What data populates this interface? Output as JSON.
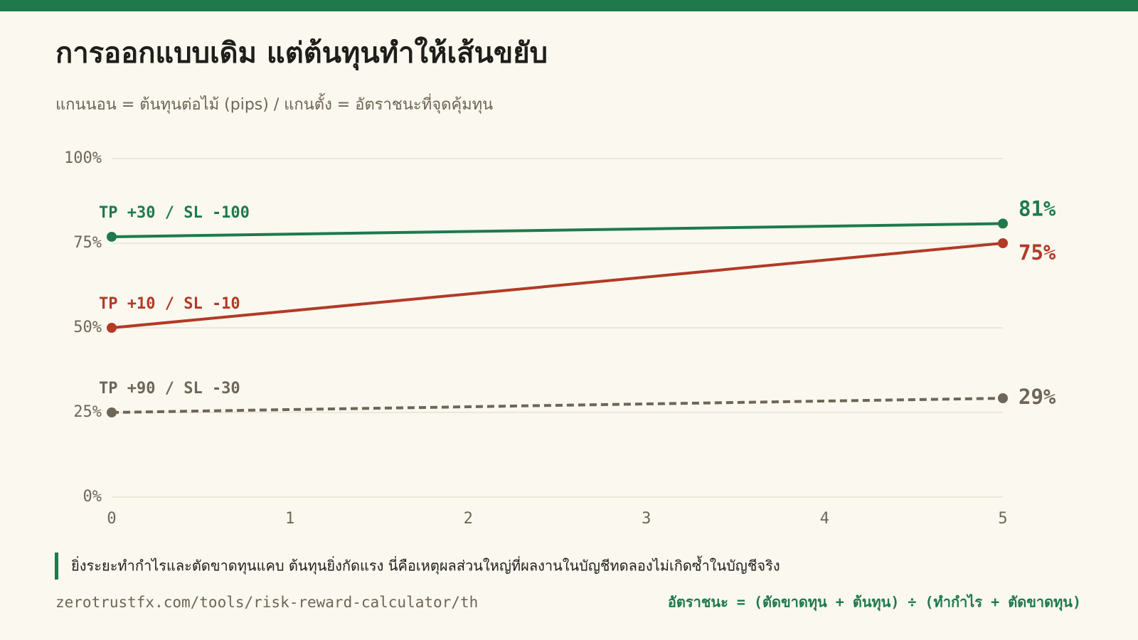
{
  "chart_data": {
    "type": "line",
    "title": "การออกแบบเดิม แต่ต้นทุนทำให้เส้นขยับ",
    "subtitle": "แกนนอน = ต้นทุนต่อไม้ (pips) / แกนตั้ง = อัตราชนะที่จุดคุ้มทุน",
    "x": [
      0,
      5
    ],
    "series": [
      {
        "name": "TP +30 / SL -100",
        "color": "#1e7a4c",
        "values": [
          76.9,
          80.8
        ],
        "value_labels": [
          null,
          "81%"
        ],
        "dashed": false
      },
      {
        "name": "TP +10 / SL -10",
        "color": "#b23a26",
        "values": [
          50,
          75
        ],
        "value_labels": [
          null,
          "75%"
        ],
        "dashed": false
      },
      {
        "name": "TP +90 / SL -30",
        "color": "#6e6656",
        "values": [
          25,
          29.2
        ],
        "value_labels": [
          null,
          "29%"
        ],
        "dashed": true
      }
    ],
    "xlim": [
      0,
      5
    ],
    "xticks": [
      0,
      1,
      2,
      3,
      4,
      5
    ],
    "ylim": [
      0,
      100
    ],
    "yticks": [
      {
        "value": 0,
        "label": "0%"
      },
      {
        "value": 25,
        "label": "25%"
      },
      {
        "value": 50,
        "label": "50%"
      },
      {
        "value": 75,
        "label": "75%"
      },
      {
        "value": 100,
        "label": "100%"
      }
    ],
    "grid": true
  },
  "note": "ยิ่งระยะทำกำไรและตัดขาดทุนแคบ ต้นทุนยิ่งกัดแรง นี่คือเหตุผลส่วนใหญ่ที่ผลงานในบัญชีทดลองไม่เกิดซ้ำในบัญชีจริง",
  "source": "zerotrustfx.com/tools/risk-reward-calculator/th",
  "formula": "อัตราชนะ = (ตัดขาดทุน + ต้นทุน) ÷ (ทำกำไร + ตัดขาดทุน)"
}
